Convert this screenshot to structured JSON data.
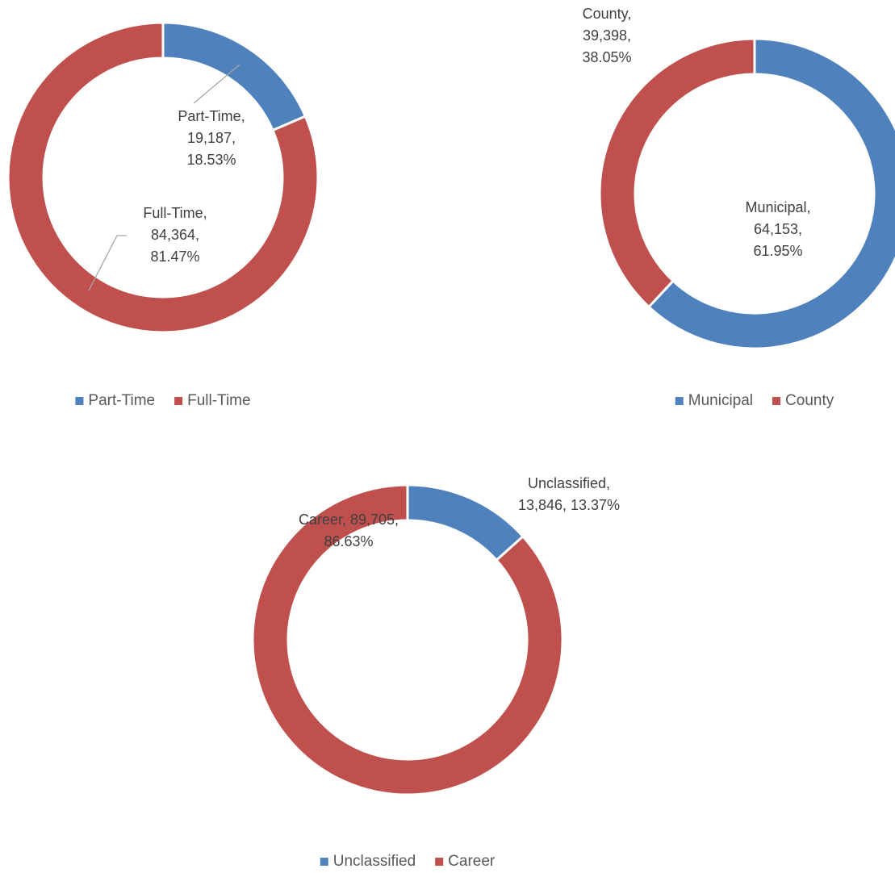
{
  "chart_data": [
    {
      "type": "doughnut",
      "categories": [
        "Part-Time",
        "Full-Time"
      ],
      "values": [
        19187,
        84364
      ],
      "value_labels": [
        "Part-Time, 19,187, 18.53%",
        "Full-Time, 84,364, 81.47%"
      ],
      "colors": [
        "#4f81bd",
        "#c0504d"
      ],
      "legend": "bottom"
    },
    {
      "type": "doughnut",
      "categories": [
        "Municipal",
        "County"
      ],
      "values": [
        64153,
        39398
      ],
      "value_labels": [
        "Municipal, 64,153, 61.95%",
        "County, 39,398, 38.05%"
      ],
      "colors": [
        "#4f81bd",
        "#c0504d"
      ],
      "legend": "bottom"
    },
    {
      "type": "doughnut",
      "categories": [
        "Unclassified",
        "Career"
      ],
      "values": [
        13846,
        89705
      ],
      "value_labels": [
        "Unclassified, 13,846, 13.37%",
        "Career, 89,705, 86.63%"
      ],
      "colors": [
        "#4f81bd",
        "#c0504d"
      ],
      "legend": "bottom"
    }
  ]
}
